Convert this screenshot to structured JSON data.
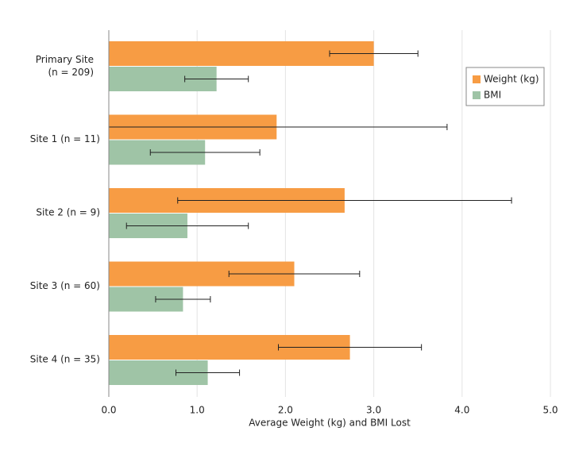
{
  "chart_data": {
    "type": "hbar",
    "categories": [
      [
        "Primary Site",
        "(n = 209)"
      ],
      "Site 1 (n = 11)",
      "Site 2 (n = 9)",
      "Site 3 (n = 60)",
      "Site 4 (n = 35)"
    ],
    "series": [
      {
        "name": "Weight (kg)",
        "color": "#f79c44",
        "values": [
          3.0,
          1.9,
          2.67,
          2.1,
          2.73
        ],
        "errors": [
          0.5,
          1.93,
          1.89,
          0.74,
          0.81
        ]
      },
      {
        "name": "BMI",
        "color": "#9fc4a6",
        "values": [
          1.22,
          1.09,
          0.89,
          0.84,
          1.12
        ],
        "errors": [
          0.36,
          0.62,
          0.69,
          0.31,
          0.36
        ]
      }
    ],
    "x_label": "Average Weight (kg) and BMI Lost",
    "xlim": [
      0,
      5
    ],
    "xticks": [
      {
        "value": 0,
        "label": "0.0"
      },
      {
        "value": 1,
        "label": "1.0"
      },
      {
        "value": 2,
        "label": "2.0"
      },
      {
        "value": 3,
        "label": "3.0"
      },
      {
        "value": 4,
        "label": "4.0"
      },
      {
        "value": 5,
        "label": "5.0"
      }
    ],
    "grid": true,
    "legend": "upper-right"
  }
}
